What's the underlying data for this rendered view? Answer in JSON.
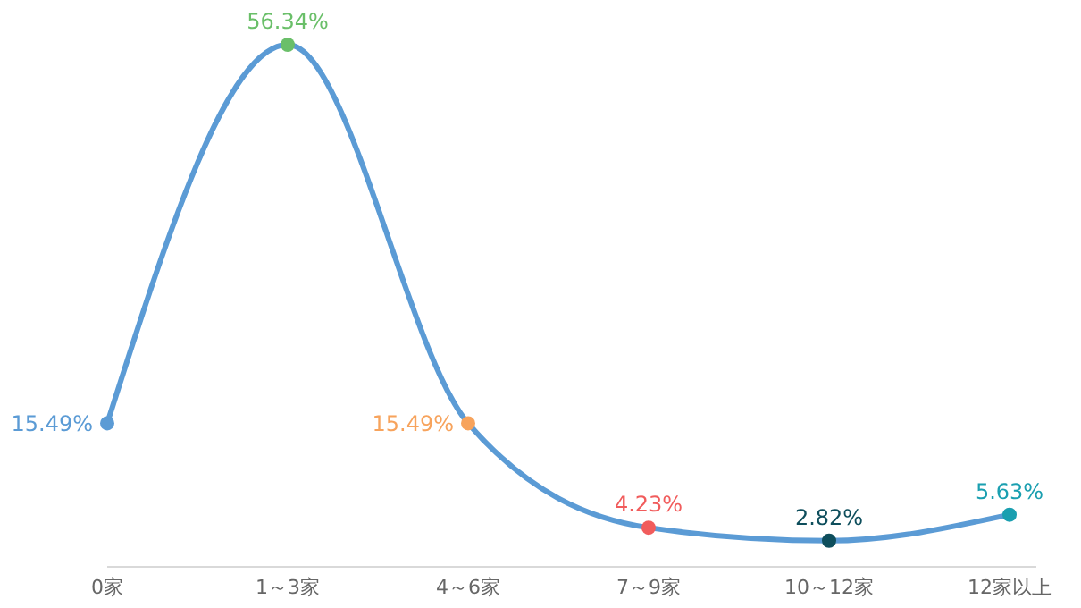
{
  "chart_data": {
    "type": "line",
    "categories": [
      "0家",
      "1～3家",
      "4～6家",
      "7～9家",
      "10～12家",
      "12家以上"
    ],
    "series": [
      {
        "color": "#5b9bd5",
        "values": [
          15.49,
          56.34,
          15.49,
          4.23,
          2.82,
          5.63
        ],
        "value_labels": [
          "15.49%",
          "56.34%",
          "15.49%",
          "4.23%",
          "2.82%",
          "5.63%"
        ],
        "colors": [
          "#5b9bd5",
          "#6abf69",
          "#f7a35c",
          "#f15c5c",
          "#0e4e5c",
          "#1a9fb0"
        ]
      }
    ],
    "tick_labels": "x",
    "marker": "circle",
    "line_style": "solid"
  }
}
